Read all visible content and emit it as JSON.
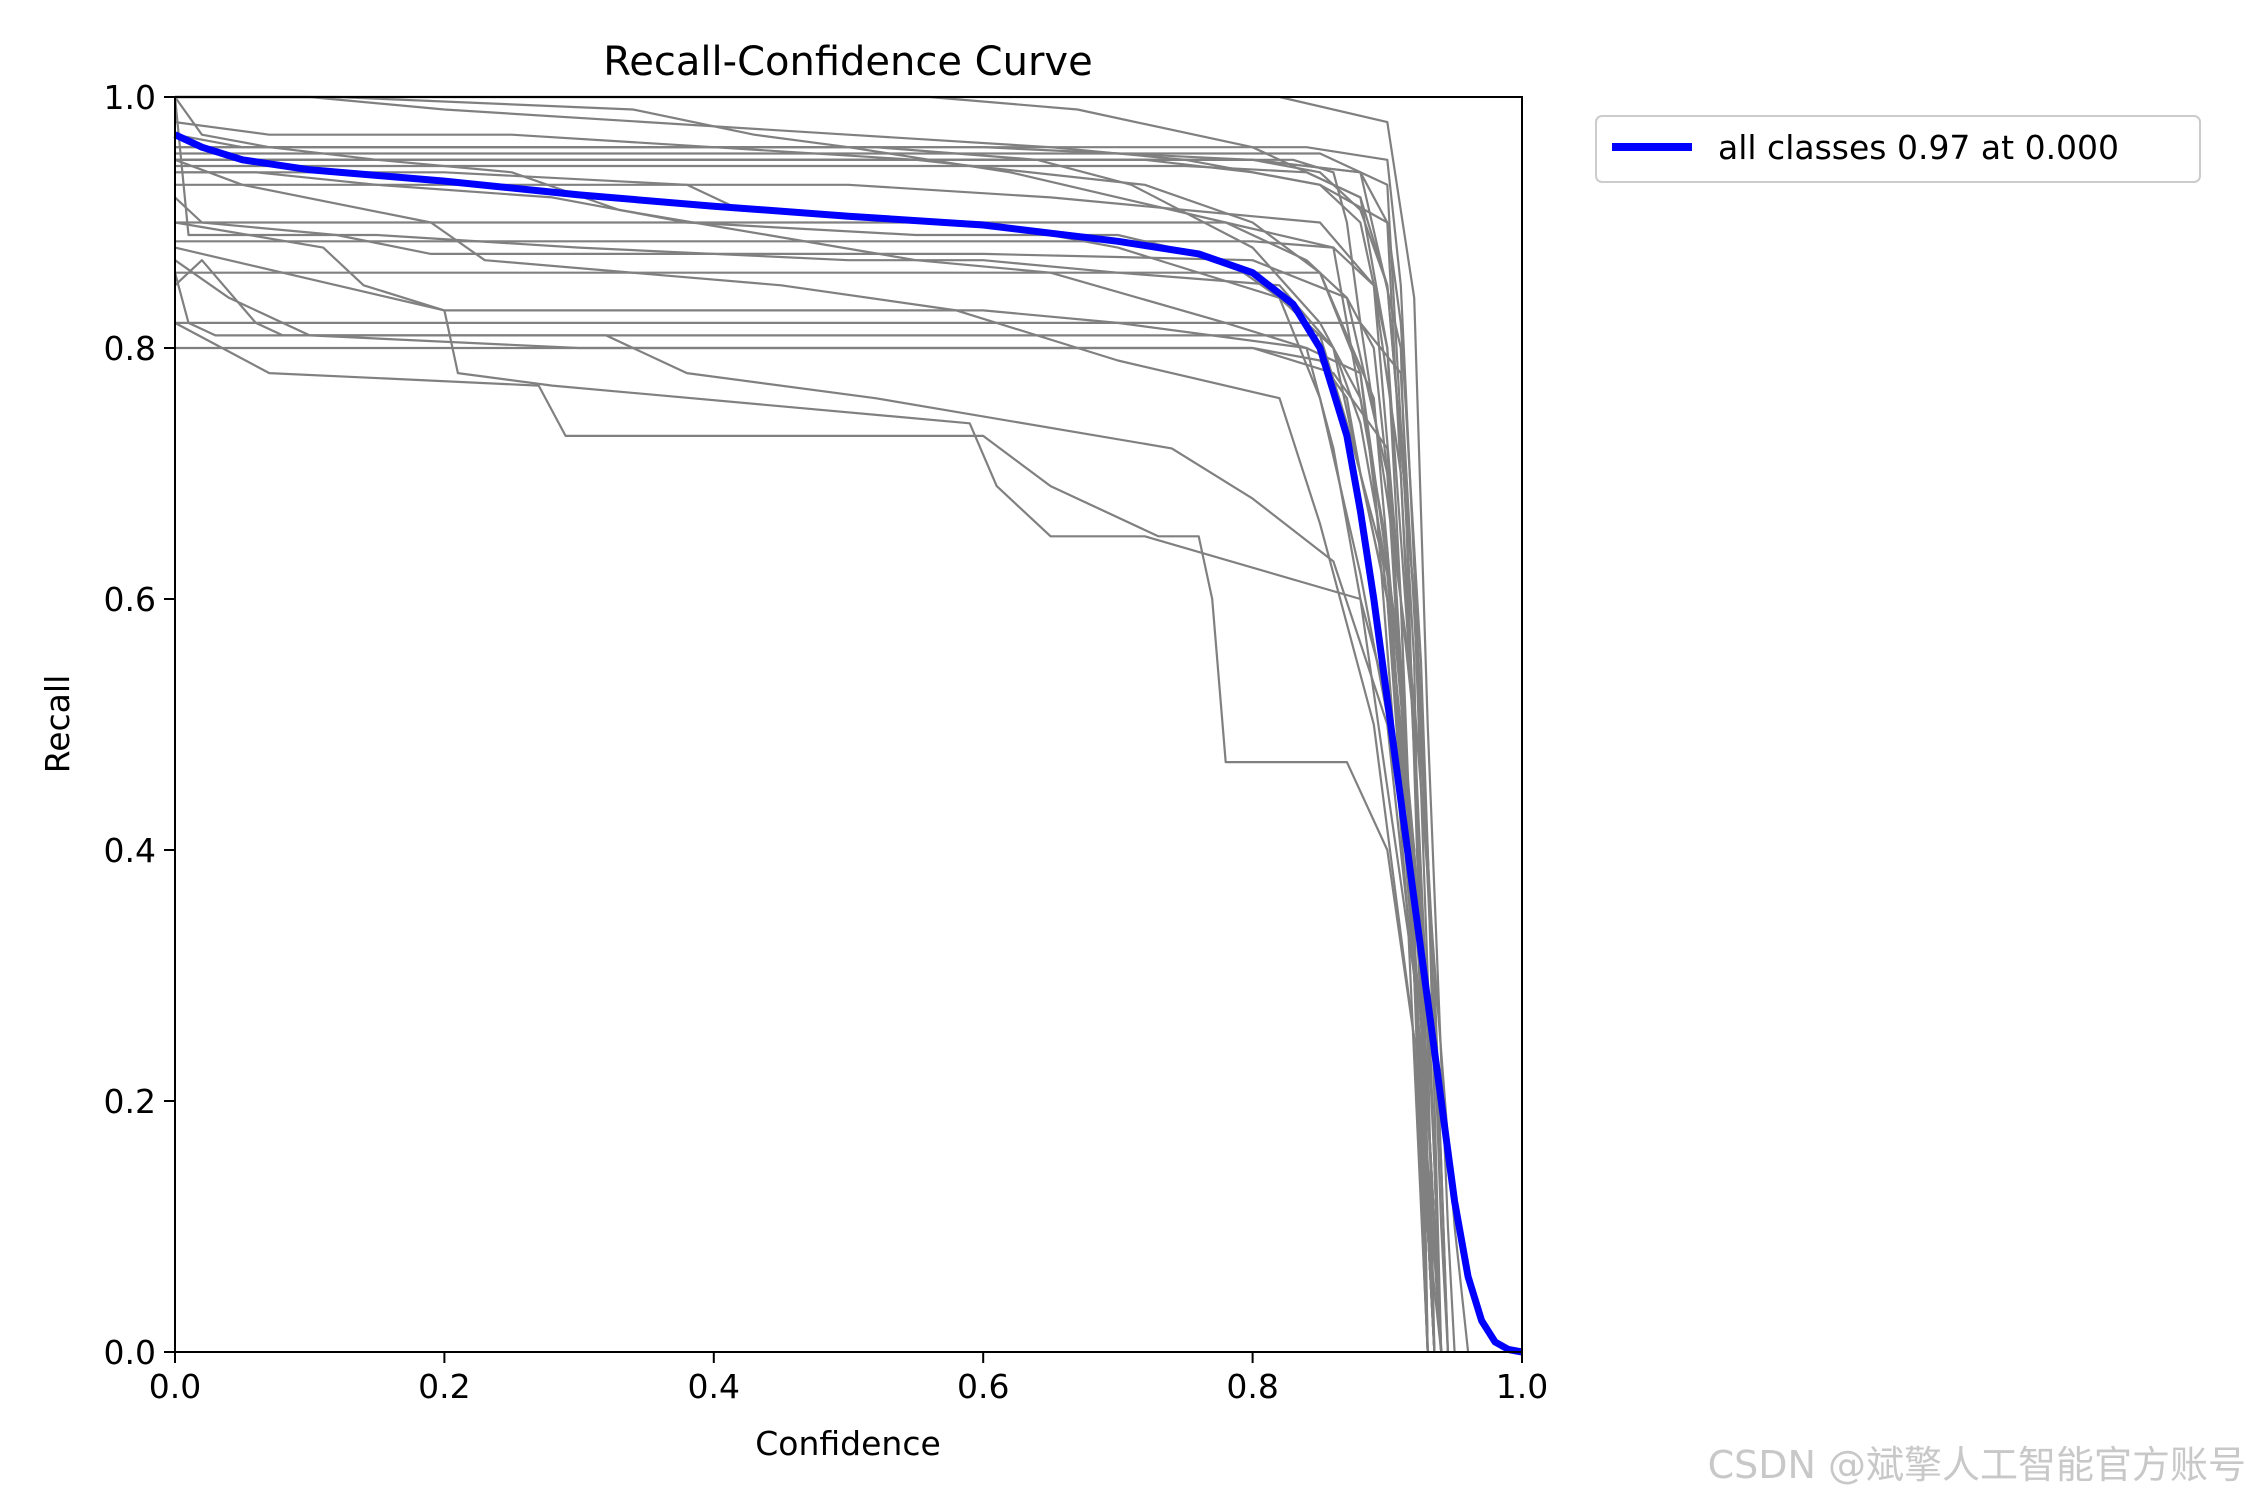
{
  "chart_data": {
    "type": "line",
    "title": "Recall-Confidence Curve",
    "xlabel": "Confidence",
    "ylabel": "Recall",
    "xlim": [
      0,
      1
    ],
    "ylim": [
      0,
      1
    ],
    "xticks": [
      "0.0",
      "0.2",
      "0.4",
      "0.6",
      "0.8",
      "1.0"
    ],
    "yticks": [
      "0.0",
      "0.2",
      "0.4",
      "0.6",
      "0.8",
      "1.0"
    ],
    "grid": false,
    "legend_position": "outside-top-right",
    "colors": {
      "class_curves": "#808080",
      "all_classes": "#0000ff"
    },
    "legend": [
      "all classes 0.97 at 0.000"
    ],
    "watermark": "CSDN @斌擎人工智能官方账号",
    "series": [
      {
        "name": "all classes 0.97 at 0.000",
        "color": "#0000ff",
        "highlight": true,
        "x": [
          0.0,
          0.02,
          0.05,
          0.1,
          0.2,
          0.3,
          0.4,
          0.5,
          0.6,
          0.7,
          0.76,
          0.8,
          0.83,
          0.85,
          0.87,
          0.88,
          0.89,
          0.9,
          0.91,
          0.92,
          0.93,
          0.94,
          0.95,
          0.96,
          0.97,
          0.98,
          0.99,
          1.0
        ],
        "y": [
          0.97,
          0.96,
          0.95,
          0.942,
          0.933,
          0.922,
          0.913,
          0.905,
          0.898,
          0.885,
          0.875,
          0.86,
          0.835,
          0.8,
          0.73,
          0.67,
          0.6,
          0.52,
          0.44,
          0.36,
          0.28,
          0.2,
          0.12,
          0.06,
          0.025,
          0.008,
          0.002,
          0.0
        ]
      },
      {
        "x": [
          0.0,
          0.05,
          0.2,
          0.4,
          0.6,
          0.7,
          0.8,
          0.88,
          0.9,
          0.92,
          0.93,
          0.935
        ],
        "y": [
          0.97,
          0.96,
          0.96,
          0.96,
          0.96,
          0.955,
          0.95,
          0.94,
          0.9,
          0.5,
          0.1,
          0.0
        ]
      },
      {
        "x": [
          0.0,
          0.3,
          0.6,
          0.8,
          0.88,
          0.91,
          0.925,
          0.93
        ],
        "y": [
          0.95,
          0.95,
          0.95,
          0.95,
          0.94,
          0.8,
          0.3,
          0.0
        ]
      },
      {
        "x": [
          0.0,
          0.01,
          0.15,
          0.3,
          0.5,
          0.6,
          0.7,
          0.82,
          0.86,
          0.9,
          0.92,
          0.935,
          0.94
        ],
        "y": [
          1.0,
          0.89,
          0.89,
          0.88,
          0.87,
          0.87,
          0.86,
          0.85,
          0.8,
          0.6,
          0.4,
          0.1,
          0.0
        ]
      },
      {
        "x": [
          0.0,
          0.02,
          0.06,
          0.08,
          0.32,
          0.38,
          0.52,
          0.74,
          0.8,
          0.86,
          0.9,
          0.92,
          0.935
        ],
        "y": [
          0.85,
          0.87,
          0.82,
          0.81,
          0.81,
          0.78,
          0.76,
          0.72,
          0.68,
          0.63,
          0.5,
          0.3,
          0.0
        ]
      },
      {
        "x": [
          0.0,
          0.07,
          0.27,
          0.29,
          0.6,
          0.65,
          0.73,
          0.76,
          0.77,
          0.78,
          0.87,
          0.9,
          0.92,
          0.93
        ],
        "y": [
          0.82,
          0.78,
          0.77,
          0.73,
          0.73,
          0.69,
          0.65,
          0.65,
          0.6,
          0.47,
          0.47,
          0.4,
          0.25,
          0.0
        ]
      },
      {
        "x": [
          0.0,
          0.2,
          0.21,
          0.28,
          0.59,
          0.61,
          0.65,
          0.72,
          0.88,
          0.92,
          0.93,
          0.94
        ],
        "y": [
          0.88,
          0.83,
          0.78,
          0.77,
          0.74,
          0.69,
          0.65,
          0.65,
          0.6,
          0.3,
          0.1,
          0.0
        ]
      },
      {
        "x": [
          0.0,
          0.02,
          0.12,
          0.19,
          0.4,
          0.6,
          0.8,
          0.87,
          0.9,
          0.92,
          0.93
        ],
        "y": [
          0.92,
          0.9,
          0.89,
          0.875,
          0.875,
          0.875,
          0.87,
          0.84,
          0.7,
          0.35,
          0.0
        ]
      },
      {
        "x": [
          0.0,
          0.1,
          0.3,
          0.5,
          0.65,
          0.75,
          0.85,
          0.89,
          0.91,
          0.925,
          0.935
        ],
        "y": [
          0.93,
          0.93,
          0.93,
          0.93,
          0.92,
          0.91,
          0.9,
          0.85,
          0.6,
          0.2,
          0.0
        ]
      },
      {
        "x": [
          0.0,
          0.02,
          0.07,
          0.15,
          0.25,
          0.33,
          0.44,
          0.55,
          0.65,
          0.78,
          0.84,
          0.88,
          0.9,
          0.92,
          0.93
        ],
        "y": [
          1.0,
          0.97,
          0.96,
          0.95,
          0.94,
          0.91,
          0.89,
          0.87,
          0.86,
          0.82,
          0.8,
          0.78,
          0.6,
          0.3,
          0.0
        ]
      },
      {
        "x": [
          0.0,
          0.1,
          0.25,
          0.4,
          0.5,
          0.7,
          0.8,
          0.86,
          0.9,
          0.91,
          0.925,
          0.93
        ],
        "y": [
          0.8,
          0.8,
          0.8,
          0.8,
          0.8,
          0.8,
          0.8,
          0.78,
          0.72,
          0.55,
          0.2,
          0.0
        ]
      },
      {
        "x": [
          0.0,
          0.3,
          0.6,
          0.75,
          0.82,
          0.88,
          0.91,
          0.935,
          0.945
        ],
        "y": [
          0.82,
          0.82,
          0.82,
          0.82,
          0.82,
          0.82,
          0.78,
          0.3,
          0.0
        ]
      },
      {
        "x": [
          0.0,
          0.04,
          0.1,
          0.2,
          0.35,
          0.5,
          0.65,
          0.75,
          0.8,
          0.85,
          0.88,
          0.9,
          0.92,
          0.935,
          0.94
        ],
        "y": [
          1.0,
          1.0,
          1.0,
          0.99,
          0.98,
          0.97,
          0.96,
          0.95,
          0.94,
          0.93,
          0.9,
          0.8,
          0.5,
          0.15,
          0.0
        ]
      },
      {
        "x": [
          0.0,
          0.12,
          0.34,
          0.43,
          0.5,
          0.62,
          0.7,
          0.78,
          0.84,
          0.87,
          0.89,
          0.92,
          0.93,
          0.94
        ],
        "y": [
          1.0,
          1.0,
          0.99,
          0.97,
          0.96,
          0.94,
          0.92,
          0.9,
          0.87,
          0.84,
          0.8,
          0.5,
          0.2,
          0.0
        ]
      },
      {
        "x": [
          0.0,
          0.2,
          0.36,
          0.45,
          0.52,
          0.64,
          0.71,
          0.8,
          0.85,
          0.88,
          0.9,
          0.915,
          0.93,
          0.935
        ],
        "y": [
          0.96,
          0.96,
          0.96,
          0.96,
          0.96,
          0.95,
          0.93,
          0.88,
          0.82,
          0.76,
          0.64,
          0.4,
          0.1,
          0.0
        ]
      },
      {
        "x": [
          0.0,
          0.05,
          0.4,
          0.6,
          0.8,
          0.85,
          0.88,
          0.9,
          0.92,
          0.93,
          0.94
        ],
        "y": [
          0.95,
          0.95,
          0.95,
          0.95,
          0.95,
          0.94,
          0.91,
          0.85,
          0.6,
          0.3,
          0.0
        ]
      },
      {
        "x": [
          0.0,
          0.01,
          0.6,
          0.8,
          0.86,
          0.89,
          0.91,
          0.93,
          0.935
        ],
        "y": [
          0.885,
          0.885,
          0.885,
          0.885,
          0.88,
          0.85,
          0.7,
          0.25,
          0.0
        ]
      },
      {
        "x": [
          0.0,
          0.06,
          0.15,
          0.28,
          0.38,
          0.55,
          0.7,
          0.78,
          0.82,
          0.86,
          0.88,
          0.9,
          0.91,
          0.925,
          0.93
        ],
        "y": [
          0.94,
          0.94,
          0.93,
          0.92,
          0.9,
          0.89,
          0.89,
          0.87,
          0.84,
          0.8,
          0.74,
          0.62,
          0.55,
          0.2,
          0.0
        ]
      },
      {
        "x": [
          0.0,
          0.3,
          0.52,
          0.72,
          0.8,
          0.85,
          0.9,
          0.91,
          0.925,
          0.94,
          0.945
        ],
        "y": [
          0.95,
          0.95,
          0.95,
          0.95,
          0.94,
          0.93,
          0.9,
          0.82,
          0.55,
          0.1,
          0.0
        ]
      },
      {
        "x": [
          0.0,
          0.04,
          0.1,
          0.3,
          0.6,
          0.8,
          0.85,
          0.87,
          0.88,
          0.9,
          0.915,
          0.93,
          0.94
        ],
        "y": [
          0.87,
          0.84,
          0.81,
          0.8,
          0.8,
          0.8,
          0.79,
          0.76,
          0.7,
          0.6,
          0.4,
          0.15,
          0.0
        ]
      },
      {
        "x": [
          0.0,
          0.11,
          0.14,
          0.2,
          0.3,
          0.45,
          0.6,
          0.7,
          0.84,
          0.86,
          0.88,
          0.9,
          0.92,
          0.94
        ],
        "y": [
          0.9,
          0.88,
          0.85,
          0.83,
          0.83,
          0.83,
          0.83,
          0.82,
          0.8,
          0.72,
          0.6,
          0.52,
          0.4,
          0.0
        ]
      },
      {
        "x": [
          0.0,
          0.5,
          0.75,
          0.83,
          0.86,
          0.87,
          0.88,
          0.9,
          0.92,
          0.95,
          0.96
        ],
        "y": [
          0.95,
          0.95,
          0.95,
          0.95,
          0.94,
          0.9,
          0.82,
          0.68,
          0.52,
          0.1,
          0.0
        ]
      },
      {
        "x": [
          0.0,
          0.2,
          0.38,
          0.42,
          0.6,
          0.7,
          0.82,
          0.85,
          0.88,
          0.91,
          0.93,
          0.94
        ],
        "y": [
          0.94,
          0.94,
          0.93,
          0.91,
          0.9,
          0.88,
          0.84,
          0.76,
          0.62,
          0.45,
          0.2,
          0.0
        ]
      },
      {
        "x": [
          0.0,
          0.6,
          0.75,
          0.84,
          0.88,
          0.9,
          0.92,
          0.94,
          0.945
        ],
        "y": [
          0.945,
          0.945,
          0.945,
          0.94,
          0.92,
          0.85,
          0.6,
          0.15,
          0.0
        ]
      },
      {
        "x": [
          0.0,
          0.07,
          0.16,
          0.25,
          0.4,
          0.55,
          0.72,
          0.8,
          0.85,
          0.88,
          0.91,
          0.935,
          0.94
        ],
        "y": [
          0.98,
          0.97,
          0.97,
          0.97,
          0.96,
          0.95,
          0.93,
          0.9,
          0.86,
          0.78,
          0.55,
          0.1,
          0.0
        ]
      },
      {
        "x": [
          0.0,
          0.4,
          0.56,
          0.67,
          0.8,
          0.88,
          0.9,
          0.91,
          0.92,
          0.935
        ],
        "y": [
          1.0,
          1.0,
          1.0,
          0.99,
          0.96,
          0.92,
          0.8,
          0.6,
          0.3,
          0.0
        ]
      },
      {
        "x": [
          0.0,
          0.55,
          0.72,
          0.82,
          0.9,
          0.92,
          0.93,
          0.945,
          0.95
        ],
        "y": [
          1.0,
          1.0,
          1.0,
          1.0,
          0.98,
          0.84,
          0.5,
          0.1,
          0.0
        ]
      },
      {
        "x": [
          0.0,
          0.3,
          0.6,
          0.79,
          0.85,
          0.89,
          0.92,
          0.935
        ],
        "y": [
          0.86,
          0.86,
          0.86,
          0.86,
          0.86,
          0.76,
          0.4,
          0.0
        ]
      },
      {
        "x": [
          0.0,
          0.58,
          0.72,
          0.84,
          0.9,
          0.91,
          0.93,
          0.94
        ],
        "y": [
          0.96,
          0.96,
          0.96,
          0.96,
          0.95,
          0.85,
          0.4,
          0.0
        ]
      },
      {
        "x": [
          0.0,
          0.01,
          0.03,
          0.1,
          0.4,
          0.7,
          0.8,
          0.85,
          0.87,
          0.9,
          0.925,
          0.935
        ],
        "y": [
          0.86,
          0.82,
          0.81,
          0.81,
          0.81,
          0.81,
          0.81,
          0.81,
          0.74,
          0.62,
          0.3,
          0.0
        ]
      },
      {
        "x": [
          0.0,
          0.2,
          0.6,
          0.78,
          0.86,
          0.89,
          0.915,
          0.93
        ],
        "y": [
          0.9,
          0.9,
          0.9,
          0.9,
          0.88,
          0.7,
          0.35,
          0.0
        ]
      },
      {
        "x": [
          0.0,
          0.5,
          0.75,
          0.85,
          0.9,
          0.92,
          0.93
        ],
        "y": [
          0.955,
          0.955,
          0.955,
          0.955,
          0.93,
          0.55,
          0.0
        ]
      },
      {
        "x": [
          0.0,
          0.05,
          0.19,
          0.23,
          0.45,
          0.58,
          0.7,
          0.82,
          0.85,
          0.89,
          0.92,
          0.93
        ],
        "y": [
          0.95,
          0.93,
          0.9,
          0.87,
          0.85,
          0.83,
          0.79,
          0.76,
          0.66,
          0.5,
          0.25,
          0.0
        ]
      }
    ]
  }
}
